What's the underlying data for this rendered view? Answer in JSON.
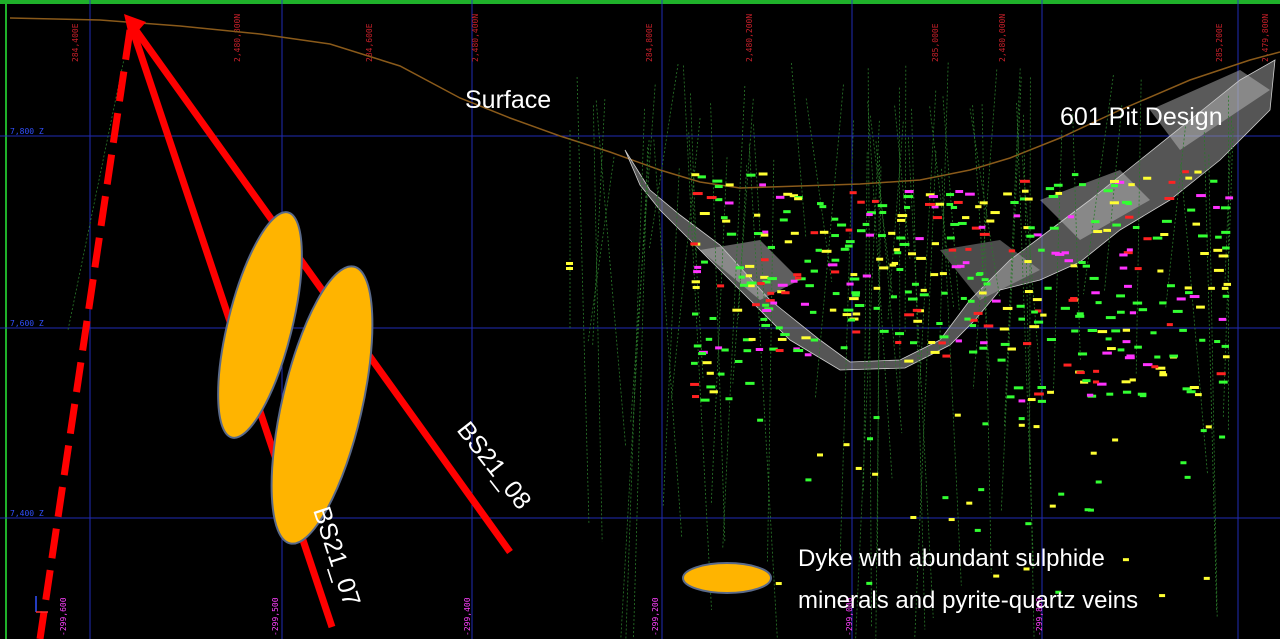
{
  "labels": {
    "surface": "Surface",
    "pit_design": "601 Pit Design",
    "hole_07": "BS21_07",
    "hole_08": "BS21_08",
    "legend_line1": "Dyke with abundant sulphide",
    "legend_line2": "minerals and pyrite-quartz veins"
  },
  "top_grid_labels": [
    "284,400E",
    "2,480,800N",
    "284,600E",
    "2,480,400N",
    "284,800E",
    "2,480,200N",
    "285,000E",
    "2,480,000N",
    "285,200E",
    "2,479,800N"
  ],
  "bottom_grid_labels": [
    "-299,600",
    "-299,500",
    "-299,400",
    "-299,200",
    "-299,000",
    "-299,800"
  ],
  "elevation_labels": [
    "7,800 Z",
    "7,600 Z",
    "7,400 Z"
  ],
  "colors": {
    "drillhole_red": "#ff0000",
    "dyke_fill": "#ffb400",
    "dyke_outline": "#5a6a8a",
    "grid": "#2530c8",
    "surface_line": "#8a5a1a",
    "pit_grey": "#9a9a9a",
    "frame_green": "#1fb02a"
  }
}
